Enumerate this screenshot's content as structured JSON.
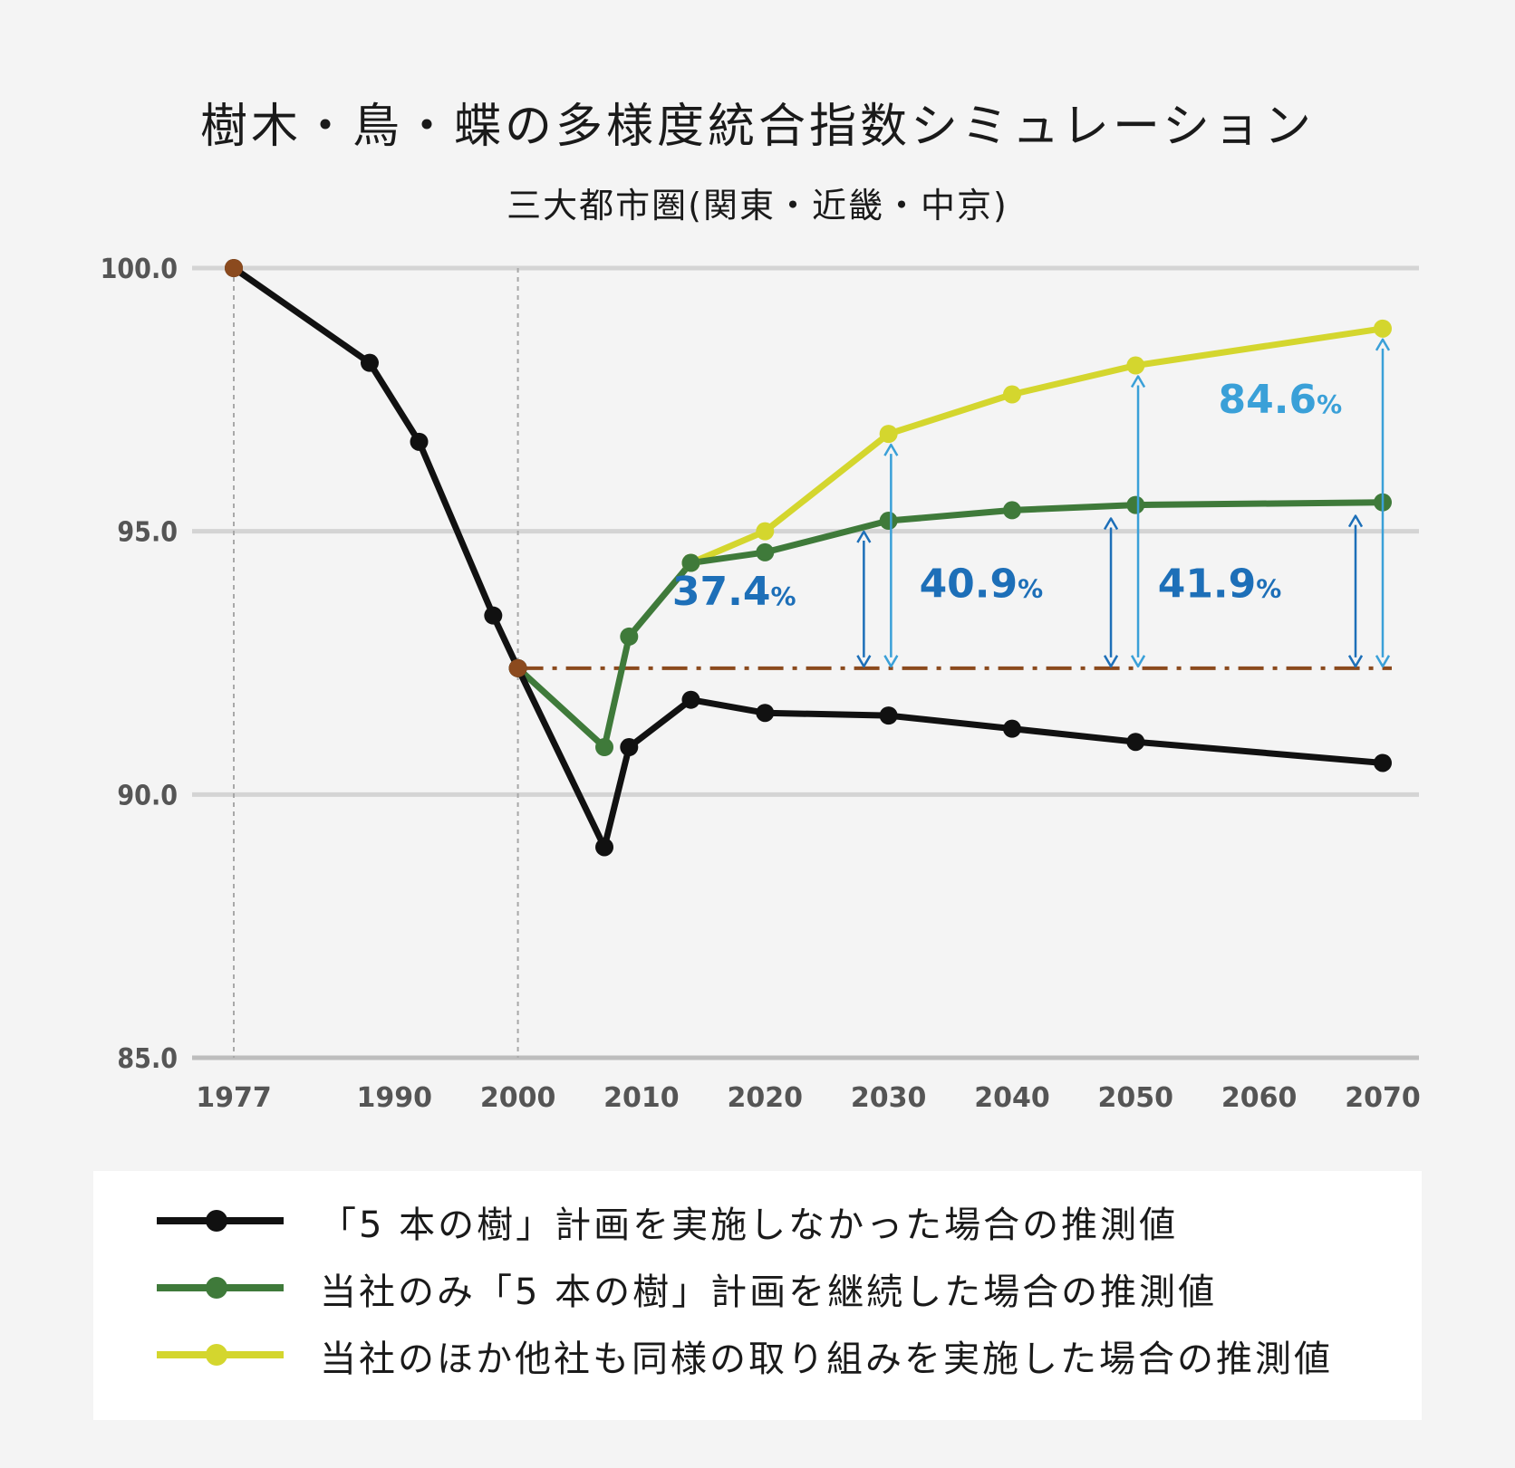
{
  "chart_data": {
    "type": "line",
    "title": "樹木・鳥・蝶の多様度統合指数シミュレーション",
    "subtitle": "三大都市圏(関東・近畿・中京)",
    "ylim": [
      85,
      100
    ],
    "yticks": [
      "100.0",
      "95.0",
      "90.0",
      "85.0"
    ],
    "ytick_values": [
      100,
      95,
      90,
      85
    ],
    "xlim": [
      1977,
      2070
    ],
    "xticks": [
      {
        "label": "1977",
        "value": 1977,
        "highlight": true
      },
      {
        "label": "1990",
        "value": 1990,
        "highlight": false
      },
      {
        "label": "2000",
        "value": 2000,
        "highlight": true
      },
      {
        "label": "2010",
        "value": 2010,
        "highlight": false
      },
      {
        "label": "2020",
        "value": 2020,
        "highlight": false
      },
      {
        "label": "2030",
        "value": 2030,
        "highlight": false
      },
      {
        "label": "2040",
        "value": 2040,
        "highlight": false
      },
      {
        "label": "2050",
        "value": 2050,
        "highlight": false
      },
      {
        "label": "2060",
        "value": 2060,
        "highlight": false
      },
      {
        "label": "2070",
        "value": 2070,
        "highlight": false
      }
    ],
    "reference_line": {
      "value": 92.4,
      "color": "#8b4a1e"
    },
    "reference_vlines": [
      1977,
      2000
    ],
    "series": [
      {
        "name": "「5 本の樹」計画を実施しなかった場合の推測値",
        "color": "#111111",
        "points": [
          [
            1977,
            100.0
          ],
          [
            1988,
            98.2
          ],
          [
            1992,
            96.7
          ],
          [
            1998,
            93.4
          ],
          [
            2000,
            92.4
          ],
          [
            2007,
            89.0
          ],
          [
            2009,
            90.9
          ],
          [
            2014,
            91.8
          ],
          [
            2020,
            91.55
          ],
          [
            2030,
            91.5
          ],
          [
            2040,
            91.25
          ],
          [
            2050,
            91.0
          ],
          [
            2070,
            90.6
          ]
        ]
      },
      {
        "name": "当社のみ「5 本の樹」計画を継続した場合の推測値",
        "color": "#3f7a3a",
        "points": [
          [
            2000,
            92.4
          ],
          [
            2007,
            90.9
          ],
          [
            2009,
            93.0
          ],
          [
            2014,
            94.4
          ],
          [
            2020,
            94.6
          ],
          [
            2030,
            95.2
          ],
          [
            2040,
            95.4
          ],
          [
            2050,
            95.5
          ],
          [
            2070,
            95.55
          ]
        ]
      },
      {
        "name": "当社のほか他社も同様の取り組みを実施した場合の推測値",
        "color": "#d4d62e",
        "points": [
          [
            2014,
            94.4
          ],
          [
            2020,
            95.0
          ],
          [
            2030,
            96.85
          ],
          [
            2040,
            97.6
          ],
          [
            2050,
            98.15
          ],
          [
            2070,
            98.85
          ]
        ]
      }
    ],
    "special_points": [
      {
        "x": 1977,
        "y": 100.0,
        "color": "#8b4a1e"
      },
      {
        "x": 2000,
        "y": 92.4,
        "color": "#8b4a1e"
      }
    ],
    "annotations": [
      {
        "label": "37.4",
        "unit": "%",
        "color": "#1d6fb8",
        "arrow_x": 2028,
        "y_from": 92.4,
        "y_to": 95.2,
        "text_x": 2017.5,
        "text_y": 93.6
      },
      {
        "label": "40.9",
        "unit": "%",
        "color": "#1d6fb8",
        "arrow_x": 2048,
        "y_from": 92.4,
        "y_to": 95.45,
        "text_x": 2037.5,
        "text_y": 93.75
      },
      {
        "label": "41.9",
        "unit": "%",
        "color": "#1d6fb8",
        "arrow_x": 2067.8,
        "y_from": 92.4,
        "y_to": 95.5,
        "text_x": 2056.8,
        "text_y": 93.75
      },
      {
        "label": "84.6",
        "unit": "%",
        "color": "#3aa0d8",
        "arrow_x": 2030.2,
        "y_from": 92.4,
        "y_to": 96.85
      },
      {
        "label": "",
        "unit": "",
        "color": "#3aa0d8",
        "arrow_x": 2050.2,
        "y_from": 92.4,
        "y_to": 98.15
      },
      {
        "label": "",
        "unit": "",
        "color": "#3aa0d8",
        "arrow_x": 2070,
        "y_from": 92.4,
        "y_to": 98.85,
        "text_x": 2058,
        "text_y": 97.25
      }
    ]
  },
  "legend": {
    "items": [
      {
        "label": "「5 本の樹」計画を実施しなかった場合の推測値",
        "color": "#111111"
      },
      {
        "label": "当社のみ「5 本の樹」計画を継続した場合の推測値",
        "color": "#3f7a3a"
      },
      {
        "label": "当社のほか他社も同様の取り組みを実施した場合の推測値",
        "color": "#d4d62e"
      }
    ]
  }
}
